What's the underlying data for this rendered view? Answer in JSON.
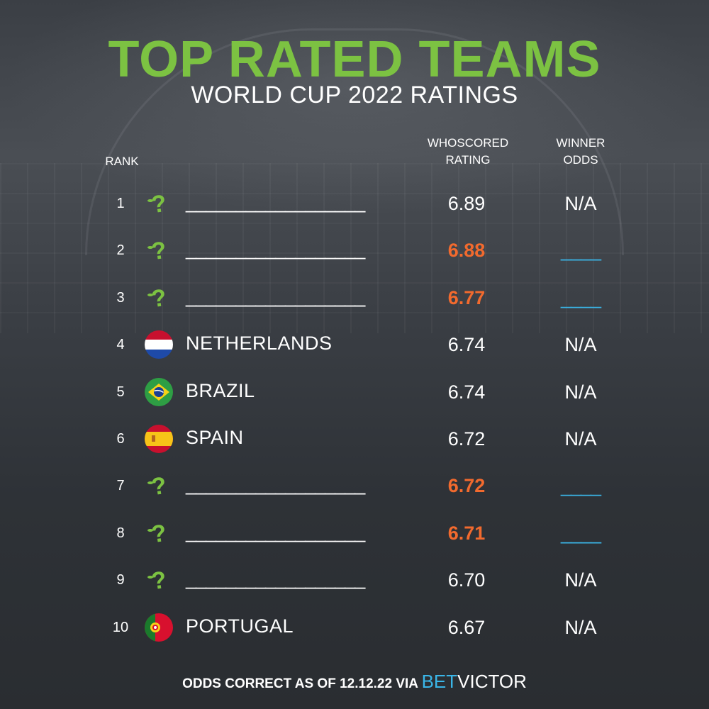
{
  "title": "TOP RATED TEAMS",
  "subtitle": "WORLD CUP 2022 RATINGS",
  "headers": {
    "rank": "RANK",
    "rating_line1": "WHOSCORED",
    "rating_line2": "RATING",
    "odds_line1": "WINNER",
    "odds_line2": "ODDS"
  },
  "rows": [
    {
      "rank": "1",
      "icon": "question-mark-icon",
      "team": "__________________",
      "rating": "6.89",
      "rating_highlight": false,
      "odds": "N/A"
    },
    {
      "rank": "2",
      "icon": "question-mark-icon",
      "team": "__________________",
      "rating": "6.88",
      "rating_highlight": true,
      "odds": "____"
    },
    {
      "rank": "3",
      "icon": "question-mark-icon",
      "team": "__________________",
      "rating": "6.77",
      "rating_highlight": true,
      "odds": "____"
    },
    {
      "rank": "4",
      "icon": "netherlands-flag-icon",
      "team": "NETHERLANDS",
      "rating": "6.74",
      "rating_highlight": false,
      "odds": "N/A"
    },
    {
      "rank": "5",
      "icon": "brazil-flag-icon",
      "team": "BRAZIL",
      "rating": "6.74",
      "rating_highlight": false,
      "odds": "N/A"
    },
    {
      "rank": "6",
      "icon": "spain-flag-icon",
      "team": "SPAIN",
      "rating": "6.72",
      "rating_highlight": false,
      "odds": "N/A"
    },
    {
      "rank": "7",
      "icon": "question-mark-icon",
      "team": "__________________",
      "rating": "6.72",
      "rating_highlight": true,
      "odds": "____"
    },
    {
      "rank": "8",
      "icon": "question-mark-icon",
      "team": "__________________",
      "rating": "6.71",
      "rating_highlight": true,
      "odds": "____"
    },
    {
      "rank": "9",
      "icon": "question-mark-icon",
      "team": "__________________",
      "rating": "6.70",
      "rating_highlight": false,
      "odds": "N/A"
    },
    {
      "rank": "10",
      "icon": "portugal-flag-icon",
      "team": "PORTUGAL",
      "rating": "6.67",
      "rating_highlight": false,
      "odds": "N/A"
    }
  ],
  "footer": {
    "text": "ODDS CORRECT  AS OF 12.12.22 VIA",
    "brand_part1": "BET",
    "brand_part2": "VICTOR"
  },
  "colors": {
    "title": "#7cc242",
    "highlight": "#f26a2e",
    "blank_odds": "#3ab6e8",
    "brand": "#3ab6e8",
    "background": "#2f3338"
  }
}
